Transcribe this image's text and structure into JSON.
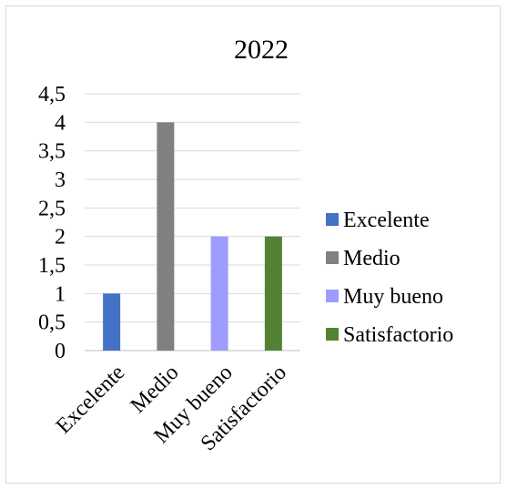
{
  "chart_data": {
    "type": "bar",
    "title": "2022",
    "categories": [
      "Excelente",
      "Medio",
      "Muy bueno",
      "Satisfactorio"
    ],
    "values": [
      1,
      4,
      2,
      2
    ],
    "colors": [
      "#4472c4",
      "#808080",
      "#9e9cff",
      "#548235"
    ],
    "ylim": [
      0,
      4.5
    ],
    "yticks": [
      "0",
      "0,5",
      "1",
      "1,5",
      "2",
      "2,5",
      "3",
      "3,5",
      "4",
      "4,5"
    ],
    "grid": true,
    "legend": {
      "position": "right",
      "entries": [
        "Excelente",
        "Medio",
        "Muy bueno",
        "Satisfactorio"
      ]
    },
    "xlabel": "",
    "ylabel": ""
  }
}
